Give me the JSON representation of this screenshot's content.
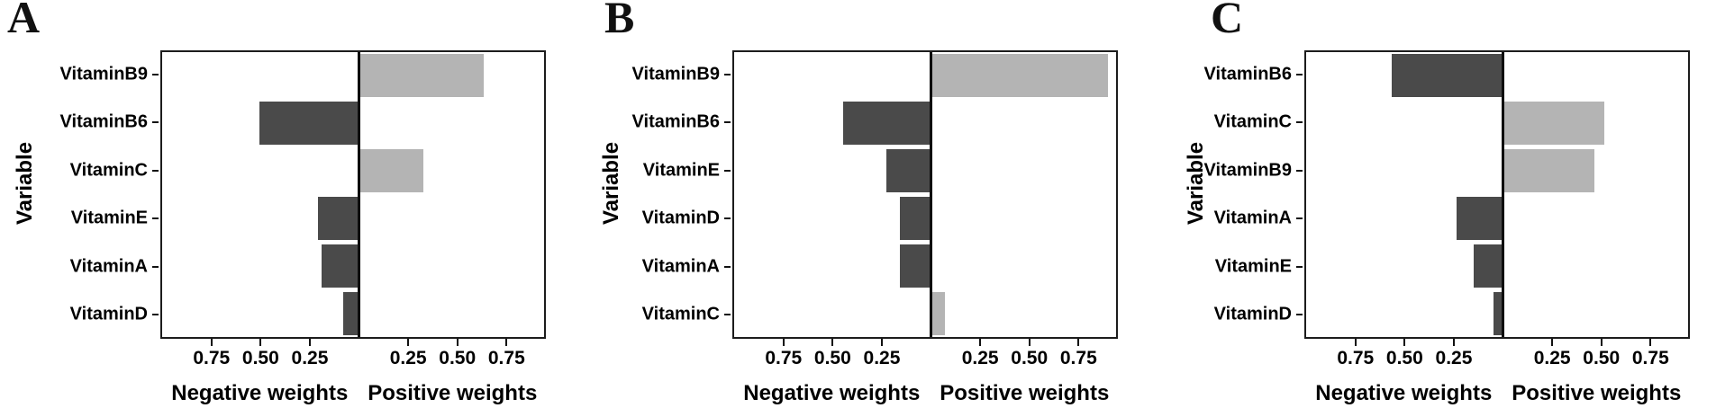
{
  "figure_title": "",
  "colors": {
    "positive_bar": "#b4b4b4",
    "negative_bar": "#4a4a4a",
    "axis": "#1c1c1c",
    "text": "#000000",
    "background": "#ffffff"
  },
  "chart_data": [
    {
      "type": "bar",
      "panel_label": "A",
      "orientation": "horizontal",
      "ylabel": "Variable",
      "xlabel_negative": "Negative weights",
      "xlabel_positive": "Positive weights",
      "xlim": [
        -1.01,
        0.95
      ],
      "x_ticks": [
        -0.75,
        -0.5,
        -0.25,
        0.25,
        0.5,
        0.75
      ],
      "x_tick_labels": [
        "0.75",
        "0.50",
        "0.25",
        "0.25",
        "0.50",
        "0.75"
      ],
      "grid": false,
      "legend": "none",
      "categories": [
        "VitaminB9",
        "VitaminB6",
        "VitaminC",
        "VitaminE",
        "VitaminA",
        "VitaminD"
      ],
      "values": [
        0.64,
        -0.51,
        0.33,
        -0.21,
        -0.19,
        -0.08
      ],
      "bar_colors": {
        "positive": "#b4b4b4",
        "negative": "#4a4a4a"
      }
    },
    {
      "type": "bar",
      "panel_label": "B",
      "orientation": "horizontal",
      "ylabel": "Variable",
      "xlabel_negative": "Negative weights",
      "xlabel_positive": "Positive weights",
      "xlim": [
        -1.01,
        0.95
      ],
      "x_ticks": [
        -0.75,
        -0.5,
        -0.25,
        0.25,
        0.5,
        0.75
      ],
      "x_tick_labels": [
        "0.75",
        "0.50",
        "0.25",
        "0.25",
        "0.50",
        "0.75"
      ],
      "grid": false,
      "legend": "none",
      "categories": [
        "VitaminB9",
        "VitaminB6",
        "VitaminE",
        "VitaminD",
        "VitaminA",
        "VitaminC"
      ],
      "values": [
        0.91,
        -0.45,
        -0.23,
        -0.16,
        -0.16,
        0.07
      ],
      "bar_colors": {
        "positive": "#b4b4b4",
        "negative": "#4a4a4a"
      }
    },
    {
      "type": "bar",
      "panel_label": "C",
      "orientation": "horizontal",
      "ylabel": "Variable",
      "xlabel_negative": "Negative weights",
      "xlabel_positive": "Positive weights",
      "xlim": [
        -1.01,
        0.95
      ],
      "x_ticks": [
        -0.75,
        -0.5,
        -0.25,
        0.25,
        0.5,
        0.75
      ],
      "x_tick_labels": [
        "0.75",
        "0.50",
        "0.25",
        "0.25",
        "0.50",
        "0.75"
      ],
      "grid": false,
      "legend": "none",
      "categories": [
        "VitaminB6",
        "VitaminC",
        "VitaminB9",
        "VitaminA",
        "VitaminE",
        "VitaminD"
      ],
      "values": [
        -0.57,
        0.52,
        0.47,
        -0.24,
        -0.15,
        -0.05
      ],
      "bar_colors": {
        "positive": "#b4b4b4",
        "negative": "#4a4a4a"
      }
    }
  ]
}
